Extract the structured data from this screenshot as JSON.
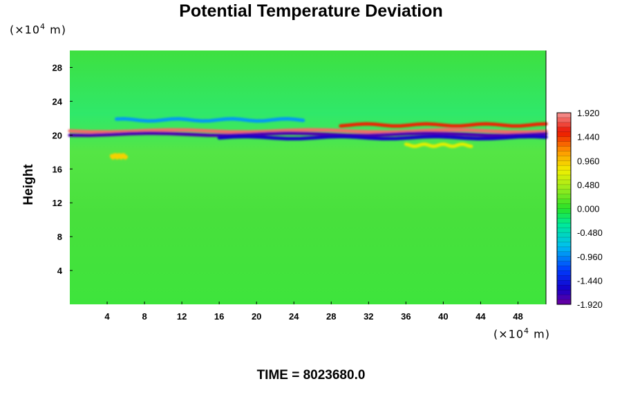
{
  "chart_data": {
    "type": "heatmap",
    "title": "Potential Temperature Deviation",
    "ylabel": "Height",
    "y_unit_prefix": "(×10",
    "y_unit_exp": "4",
    "y_unit_suffix": " m)",
    "x_unit_prefix": "(×10",
    "x_unit_exp": "4",
    "x_unit_suffix": " m)",
    "xlim": [
      0,
      51
    ],
    "ylim": [
      0,
      30
    ],
    "x_ticks": [
      "4",
      "8",
      "12",
      "16",
      "20",
      "24",
      "28",
      "32",
      "36",
      "40",
      "44",
      "48"
    ],
    "x_tick_values": [
      4,
      8,
      12,
      16,
      20,
      24,
      28,
      32,
      36,
      40,
      44,
      48
    ],
    "y_ticks": [
      "4",
      "8",
      "12",
      "16",
      "20",
      "24",
      "28"
    ],
    "y_tick_values": [
      4,
      8,
      12,
      16,
      20,
      24,
      28
    ],
    "colorbar": {
      "range": [
        -1.92,
        1.92
      ],
      "labels": [
        "1.920",
        "1.440",
        "0.960",
        "0.480",
        "0.000",
        "-0.480",
        "-0.960",
        "-1.440",
        "-1.920"
      ],
      "label_values": [
        1.92,
        1.44,
        0.96,
        0.48,
        0.0,
        -0.48,
        -0.96,
        -1.44,
        -1.92
      ]
    },
    "background_value": 0.0,
    "features": [
      {
        "x0": 0,
        "x1": 51,
        "y": 20.5,
        "value": 1.8
      },
      {
        "x0": 0,
        "x1": 51,
        "y": 20.1,
        "value": -1.8
      },
      {
        "x0": 29,
        "x1": 51,
        "y": 21.2,
        "value": 1.5
      },
      {
        "x0": 16,
        "x1": 51,
        "y": 19.7,
        "value": -1.6
      },
      {
        "x0": 5,
        "x1": 25,
        "y": 21.8,
        "value": -0.9
      },
      {
        "x0": 36,
        "x1": 43,
        "y": 18.8,
        "value": 0.7
      },
      {
        "x0": 4.5,
        "x1": 6,
        "y": 17.5,
        "value": 0.9
      }
    ]
  },
  "footer": {
    "time_label": "TIME = 8023680.0"
  }
}
